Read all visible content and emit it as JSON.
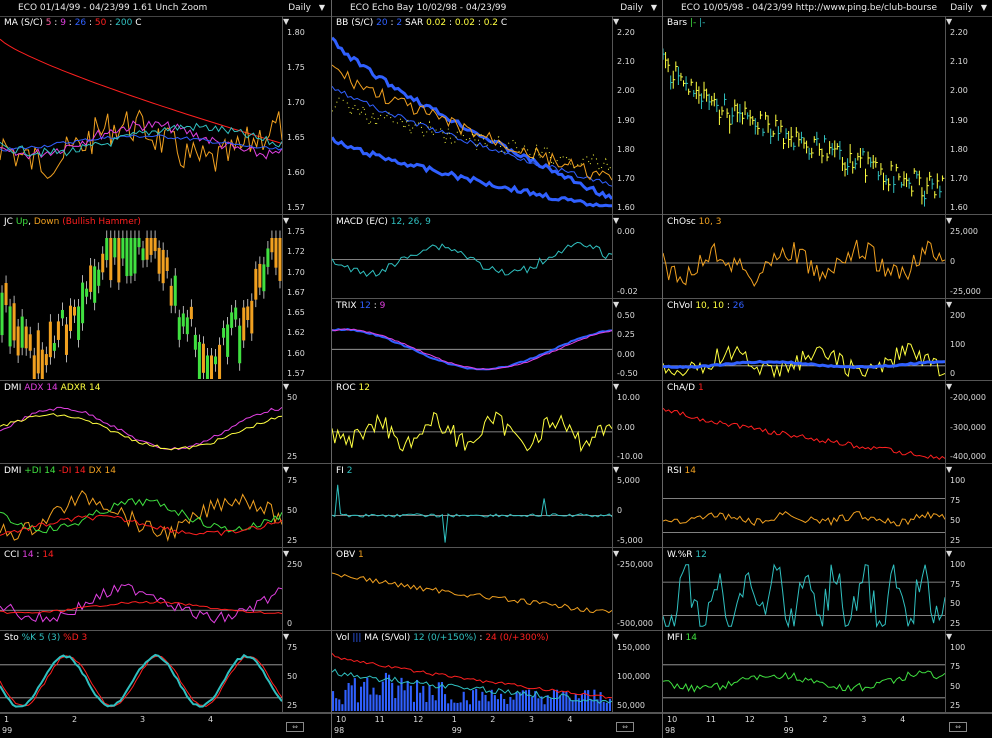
{
  "colors": {
    "bg": "#000000",
    "grid": "#555555",
    "white": "#ffffff",
    "yellow": "#ffff40",
    "orange": "#f0a020",
    "blue": "#3060ff",
    "cyan": "#30c0c0",
    "green": "#40e040",
    "red": "#ff2020",
    "magenta": "#e040e0",
    "pink": "#ff60a0"
  },
  "columns": [
    {
      "header": {
        "title": "ECO  01/14/99 - 04/23/99   1.61  Unch   Zoom",
        "daily": "Daily"
      },
      "x_labels": [
        "1",
        "2",
        "3",
        "4"
      ],
      "year_label": "99",
      "panels": [
        {
          "label": [
            {
              "t": "MA (S/C) ",
              "c": "#ffffff"
            },
            {
              "t": "5",
              "c": "#ff60a0"
            },
            {
              "t": " : ",
              "c": "#ffffff"
            },
            {
              "t": "9",
              "c": "#e040e0"
            },
            {
              "t": " : ",
              "c": "#ffffff"
            },
            {
              "t": "26",
              "c": "#3060ff"
            },
            {
              "t": " : ",
              "c": "#ffffff"
            },
            {
              "t": "50",
              "c": "#ff2020"
            },
            {
              "t": " : ",
              "c": "#ffffff"
            },
            {
              "t": "200",
              "c": "#30c0c0"
            },
            {
              "t": "   C ",
              "c": "#ffffff"
            }
          ],
          "ticks": [
            "1.80",
            "1.75",
            "1.70",
            "1.65",
            "1.60",
            "1.57"
          ]
        },
        {
          "label": [
            {
              "t": "JC ",
              "c": "#ffffff"
            },
            {
              "t": "Up",
              "c": "#40e040"
            },
            {
              "t": ", ",
              "c": "#ffffff"
            },
            {
              "t": "Down",
              "c": "#f0a020"
            },
            {
              "t": " (Bullish Hammer)",
              "c": "#ff2020"
            }
          ],
          "ticks": [
            "1.75",
            "1.72",
            "1.70",
            "1.67",
            "1.65",
            "1.62",
            "1.60",
            "1.57"
          ]
        },
        {
          "label": [
            {
              "t": "DMI ",
              "c": "#ffffff"
            },
            {
              "t": "ADX 14",
              "c": "#e040e0"
            },
            {
              "t": " ",
              "c": "#ffffff"
            },
            {
              "t": "ADXR 14",
              "c": "#ffff40"
            }
          ],
          "ticks": [
            "50",
            "25"
          ]
        },
        {
          "label": [
            {
              "t": "DMI ",
              "c": "#ffffff"
            },
            {
              "t": "+DI 14",
              "c": "#40e040"
            },
            {
              "t": " ",
              "c": "#ffffff"
            },
            {
              "t": "-DI 14",
              "c": "#ff2020"
            },
            {
              "t": " ",
              "c": "#ffffff"
            },
            {
              "t": "DX 14",
              "c": "#f0a020"
            }
          ],
          "ticks": [
            "75",
            "50",
            "25"
          ]
        },
        {
          "label": [
            {
              "t": "CCI ",
              "c": "#ffffff"
            },
            {
              "t": "14",
              "c": "#e040e0"
            },
            {
              "t": " : ",
              "c": "#ffffff"
            },
            {
              "t": "14",
              "c": "#ff2020"
            }
          ],
          "ticks": [
            "250",
            "0"
          ]
        },
        {
          "label": [
            {
              "t": "Sto ",
              "c": "#ffffff"
            },
            {
              "t": "%K 5 (3)",
              "c": "#30c0c0"
            },
            {
              "t": " ",
              "c": "#ffffff"
            },
            {
              "t": "%D 3",
              "c": "#ff2020"
            }
          ],
          "ticks": [
            "75",
            "50",
            "25"
          ]
        }
      ]
    },
    {
      "header": {
        "title": "ECO  Echo Bay  10/02/98 - 04/23/99",
        "daily": "Daily"
      },
      "x_labels": [
        "10",
        "11",
        "12",
        "1",
        "2",
        "3",
        "4"
      ],
      "year_label": "98",
      "year_label2": "99",
      "panels": [
        {
          "label": [
            {
              "t": "BB (S/C) ",
              "c": "#ffffff"
            },
            {
              "t": "20",
              "c": "#3060ff"
            },
            {
              "t": " : ",
              "c": "#ffffff"
            },
            {
              "t": "2",
              "c": "#3060ff"
            },
            {
              "t": "   SAR ",
              "c": "#ffffff"
            },
            {
              "t": "0.02",
              "c": "#ffff40"
            },
            {
              "t": " : ",
              "c": "#ffffff"
            },
            {
              "t": "0.02",
              "c": "#ffff40"
            },
            {
              "t": " : ",
              "c": "#ffffff"
            },
            {
              "t": "0.2",
              "c": "#ffff40"
            },
            {
              "t": "   C ",
              "c": "#ffffff"
            }
          ],
          "ticks": [
            "2.20",
            "2.10",
            "2.00",
            "1.90",
            "1.80",
            "1.70",
            "1.60"
          ]
        },
        {
          "label": [
            {
              "t": "MACD (E/C) ",
              "c": "#ffffff"
            },
            {
              "t": "12, 26, 9",
              "c": "#30c0c0"
            }
          ],
          "ticks": [
            "0.00",
            "-0.02"
          ]
        },
        {
          "label": [
            {
              "t": "TRIX ",
              "c": "#ffffff"
            },
            {
              "t": "12",
              "c": "#3060ff"
            },
            {
              "t": " : ",
              "c": "#ffffff"
            },
            {
              "t": "9",
              "c": "#e040e0"
            }
          ],
          "ticks": [
            "0.50",
            "0.25",
            "0.00",
            "-0.50"
          ]
        },
        {
          "label": [
            {
              "t": "ROC ",
              "c": "#ffffff"
            },
            {
              "t": "12",
              "c": "#ffff40"
            }
          ],
          "ticks": [
            "10.00",
            "0.00",
            "-10.00"
          ]
        },
        {
          "label": [
            {
              "t": "FI ",
              "c": "#ffffff"
            },
            {
              "t": "2",
              "c": "#30c0c0"
            }
          ],
          "ticks": [
            "5,000",
            "0",
            "-5,000"
          ]
        },
        {
          "label": [
            {
              "t": "OBV ",
              "c": "#ffffff"
            },
            {
              "t": "1",
              "c": "#f0a020"
            }
          ],
          "ticks": [
            "-250,000",
            "-500,000"
          ]
        },
        {
          "label": [
            {
              "t": "Vol ",
              "c": "#ffffff"
            },
            {
              "t": "|||",
              "c": "#3060ff"
            },
            {
              "t": "   MA (S/Vol) ",
              "c": "#ffffff"
            },
            {
              "t": "12 (0/+150%)",
              "c": "#30c0c0"
            },
            {
              "t": " : ",
              "c": "#ffffff"
            },
            {
              "t": "24 (0/+300%)",
              "c": "#ff2020"
            }
          ],
          "ticks": [
            "150,000",
            "100,000",
            "50,000"
          ]
        }
      ]
    },
    {
      "header": {
        "title": "ECO   10/05/98 - 04/23/99   http://www.ping.be/club-bourse",
        "daily": "Daily"
      },
      "x_labels": [
        "10",
        "11",
        "12",
        "1",
        "2",
        "3",
        "4"
      ],
      "year_label": "98",
      "year_label2": "99",
      "panels": [
        {
          "label": [
            {
              "t": "Bars ",
              "c": "#ffffff"
            },
            {
              "t": "|-",
              "c": "#40e040"
            },
            {
              "t": "  ",
              "c": "#ffffff"
            },
            {
              "t": "|-",
              "c": "#30c0c0"
            }
          ],
          "ticks": [
            "2.20",
            "2.10",
            "2.00",
            "1.90",
            "1.80",
            "1.70",
            "1.60"
          ]
        },
        {
          "label": [
            {
              "t": "ChOsc ",
              "c": "#ffffff"
            },
            {
              "t": "10, 3",
              "c": "#f0a020"
            }
          ],
          "ticks": [
            "25,000",
            "0",
            "-25,000"
          ]
        },
        {
          "label": [
            {
              "t": "ChVol ",
              "c": "#ffffff"
            },
            {
              "t": "10, 10",
              "c": "#ffff40"
            },
            {
              "t": " : ",
              "c": "#ffffff"
            },
            {
              "t": "26",
              "c": "#3060ff"
            }
          ],
          "ticks": [
            "200",
            "100",
            "0"
          ]
        },
        {
          "label": [
            {
              "t": "ChA/D ",
              "c": "#ffffff"
            },
            {
              "t": "1",
              "c": "#ff2020"
            }
          ],
          "ticks": [
            "-200,000",
            "-300,000",
            "-400,000"
          ]
        },
        {
          "label": [
            {
              "t": "RSI ",
              "c": "#ffffff"
            },
            {
              "t": "14",
              "c": "#f0a020"
            }
          ],
          "ticks": [
            "100",
            "75",
            "50",
            "25"
          ]
        },
        {
          "label": [
            {
              "t": "W.%R ",
              "c": "#ffffff"
            },
            {
              "t": "12",
              "c": "#30c0c0"
            }
          ],
          "ticks": [
            "100",
            "75",
            "50",
            "25"
          ]
        },
        {
          "label": [
            {
              "t": "MFI ",
              "c": "#ffffff"
            },
            {
              "t": "14",
              "c": "#40e040"
            }
          ],
          "ticks": [
            "100",
            "75",
            "50",
            "25"
          ]
        }
      ]
    }
  ]
}
